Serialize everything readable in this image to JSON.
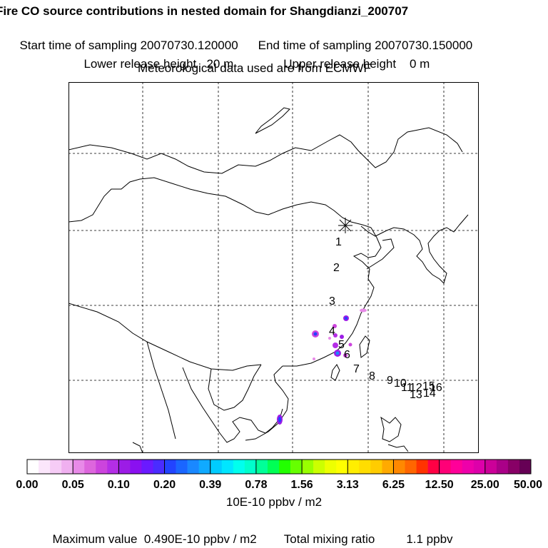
{
  "header": {
    "title": "Fire CO source contributions in nested domain for Shangdianzi_200707",
    "start_label": "Start time of sampling 20070730.120000",
    "end_label": "End time of sampling 20070730.150000",
    "lower_label": "Lower release height   20 m",
    "upper_label": "Upper release height    0 m",
    "met_label": "Meteorological data used are from ECMWF"
  },
  "map": {
    "station_marker": "asterisk-icon",
    "trajectory_labels": [
      "1",
      "2",
      "3",
      "4",
      "5",
      "6",
      "7",
      "8",
      "9",
      "10",
      "11",
      "12",
      "13",
      "14",
      "15",
      "16"
    ]
  },
  "colorbar": {
    "tick_labels": [
      "0.00",
      "0.05",
      "0.10",
      "0.20",
      "0.39",
      "0.78",
      "1.56",
      "3.13",
      "6.25",
      "12.50",
      "25.00",
      "50.00"
    ],
    "colors": [
      "#ffffff",
      "#fbe6fb",
      "#f6ccf6",
      "#f0b0f0",
      "#e88ae8",
      "#dd66dd",
      "#cc44dd",
      "#b42ee6",
      "#9c1ce6",
      "#8a10f0",
      "#6a1aff",
      "#4a2cff",
      "#2244ff",
      "#1a66ff",
      "#1a88ff",
      "#10aaff",
      "#00ccff",
      "#00e6ff",
      "#00ffee",
      "#00ffcc",
      "#00ff99",
      "#00ff55",
      "#22ff00",
      "#66ff00",
      "#99ff00",
      "#ccff00",
      "#eeff00",
      "#ffff00",
      "#ffee00",
      "#ffdd00",
      "#ffcc00",
      "#ffaa00",
      "#ff8800",
      "#ff6600",
      "#ff3300",
      "#ff0044",
      "#ff0077",
      "#ff0099",
      "#ee00aa",
      "#dd00aa",
      "#cc0099",
      "#aa0088",
      "#880066",
      "#660055"
    ],
    "units": "10E-10 ppbv / m2"
  },
  "footer": {
    "max_label": "Maximum value  0.490E-10 ppbv / m2",
    "total_label": "Total mixing ratio",
    "total_value": "1.1 ppbv"
  }
}
